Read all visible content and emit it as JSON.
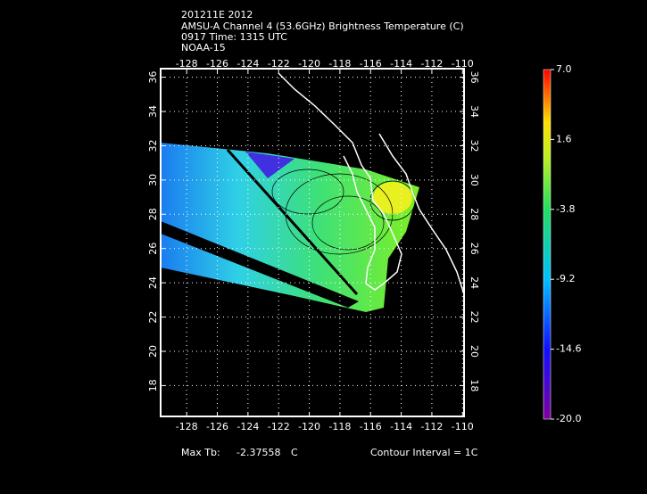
{
  "header": {
    "lines": [
      "201211E 2012",
      "AMSU-A Channel 4 (53.6GHz) Brightness Temperature (C)",
      "0917 Time: 1315 UTC",
      "NOAA-15"
    ]
  },
  "map": {
    "lonlim": [
      -129.7,
      -109.9
    ],
    "latlim": [
      16.2,
      36.5
    ],
    "lon_ticks": [
      -128,
      -126,
      -124,
      -122,
      -120,
      -118,
      -116,
      -114,
      -112,
      -110
    ],
    "lat_ticks": [
      18,
      20,
      22,
      24,
      26,
      28,
      30,
      32,
      34,
      36
    ],
    "grid": true
  },
  "colorbar": {
    "lim": [
      -20,
      7
    ],
    "ticks": [
      {
        "value": 7,
        "label": "7.0"
      },
      1.6,
      -3.8,
      -9.2,
      -14.6,
      {
        "value": -20,
        "label": "-20.0"
      }
    ]
  },
  "footer": {
    "max_label": "Max Tb:",
    "max_value": -2.37558,
    "max_unit": "C",
    "contour_interval": "Contour Interval = 1C"
  }
}
